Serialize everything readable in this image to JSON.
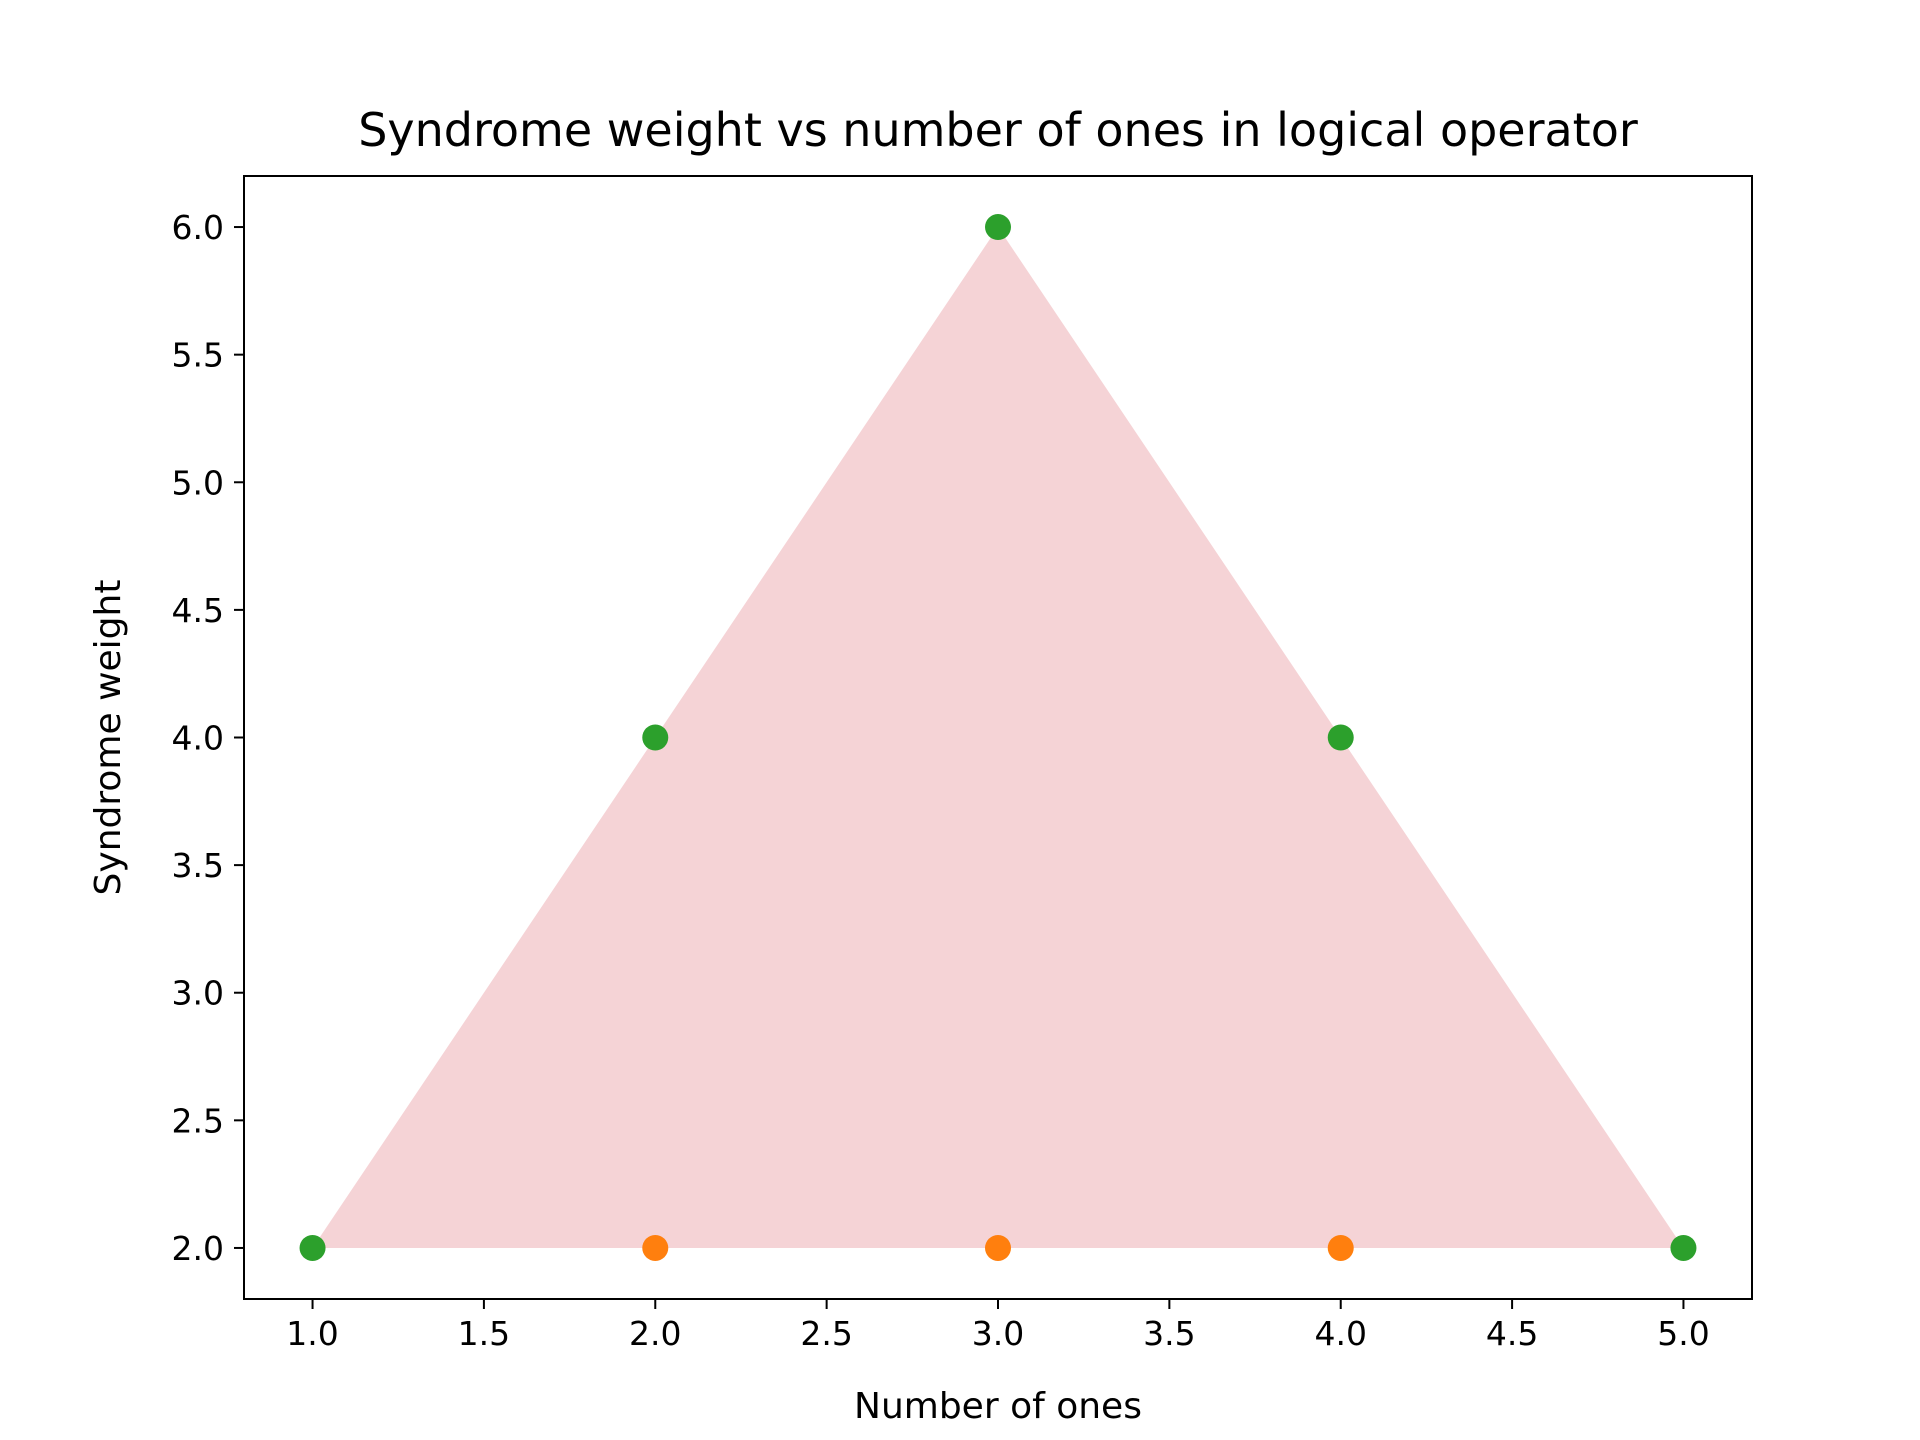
{
  "chart_data": {
    "type": "scatter",
    "title": "Syndrome weight vs number of ones in logical operator",
    "xlabel": "Number of ones",
    "ylabel": "Syndrome weight",
    "xlim": [
      0.8,
      5.2
    ],
    "ylim": [
      1.8,
      6.2
    ],
    "xticks": [
      1.0,
      1.5,
      2.0,
      2.5,
      3.0,
      3.5,
      4.0,
      4.5,
      5.0
    ],
    "xtick_labels": [
      "1.0",
      "1.5",
      "2.0",
      "2.5",
      "3.0",
      "3.5",
      "4.0",
      "4.5",
      "5.0"
    ],
    "yticks": [
      2.0,
      2.5,
      3.0,
      3.5,
      4.0,
      4.5,
      5.0,
      5.5,
      6.0
    ],
    "ytick_labels": [
      "2.0",
      "2.5",
      "3.0",
      "3.5",
      "4.0",
      "4.5",
      "5.0",
      "5.5",
      "6.0"
    ],
    "grid": false,
    "fill_region": {
      "color": "#f5d3d6",
      "x": [
        1,
        3,
        5
      ],
      "y": [
        2,
        6,
        2
      ]
    },
    "series": [
      {
        "color": "#ff7f0e",
        "x": [
          2,
          3,
          4
        ],
        "y": [
          2,
          2,
          2
        ]
      },
      {
        "color": "#2ca02c",
        "x": [
          1,
          2,
          3,
          4,
          5
        ],
        "y": [
          2,
          4,
          6,
          4,
          2
        ]
      }
    ]
  }
}
